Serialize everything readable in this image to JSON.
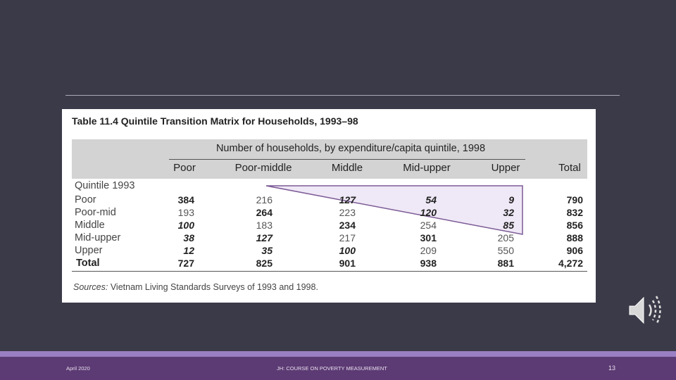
{
  "table": {
    "title": "Table 11.4  Quintile Transition Matrix for Households, 1993–98",
    "group_header": "Number of households, by expenditure/capita quintile, 1998",
    "columns": [
      "Poor",
      "Poor-middle",
      "Middle",
      "Mid-upper",
      "Upper",
      "Total"
    ],
    "row_group_label": "Quintile 1993",
    "rows": [
      {
        "label": "Poor",
        "cells": [
          "384",
          "216",
          "127",
          "54",
          "9",
          "790"
        ]
      },
      {
        "label": "Poor-mid",
        "cells": [
          "193",
          "264",
          "223",
          "120",
          "32",
          "832"
        ]
      },
      {
        "label": "Middle",
        "cells": [
          "100",
          "183",
          "234",
          "254",
          "85",
          "856"
        ]
      },
      {
        "label": "Mid-upper",
        "cells": [
          "38",
          "127",
          "217",
          "301",
          "205",
          "888"
        ]
      },
      {
        "label": "Upper",
        "cells": [
          "12",
          "35",
          "100",
          "209",
          "550",
          "906"
        ]
      },
      {
        "label": "Total",
        "cells": [
          "727",
          "825",
          "901",
          "938",
          "881",
          "4,272"
        ]
      }
    ],
    "cell_styles": [
      [
        "b",
        "n",
        "bi",
        "bi",
        "bi",
        "b"
      ],
      [
        "n",
        "b",
        "n",
        "bi",
        "bi",
        "b"
      ],
      [
        "bi",
        "n",
        "b",
        "n",
        "bi",
        "b"
      ],
      [
        "bi",
        "bi",
        "n",
        "b",
        "n",
        "b"
      ],
      [
        "bi",
        "bi",
        "bi",
        "n",
        "n",
        "b"
      ],
      [
        "b",
        "b",
        "b",
        "b",
        "b",
        "b"
      ]
    ],
    "source_label": "Sources:",
    "source_text": " Vietnam Living Standards Surveys of 1993 and 1998."
  },
  "annotation": {
    "stroke": "#7b5a96",
    "fill": "#ece4f4"
  },
  "footer": {
    "date": "April 2020",
    "course": "JH: COURSE ON POVERTY MEASUREMENT",
    "page": "13"
  },
  "icons": {
    "audio": "speaker-icon"
  }
}
